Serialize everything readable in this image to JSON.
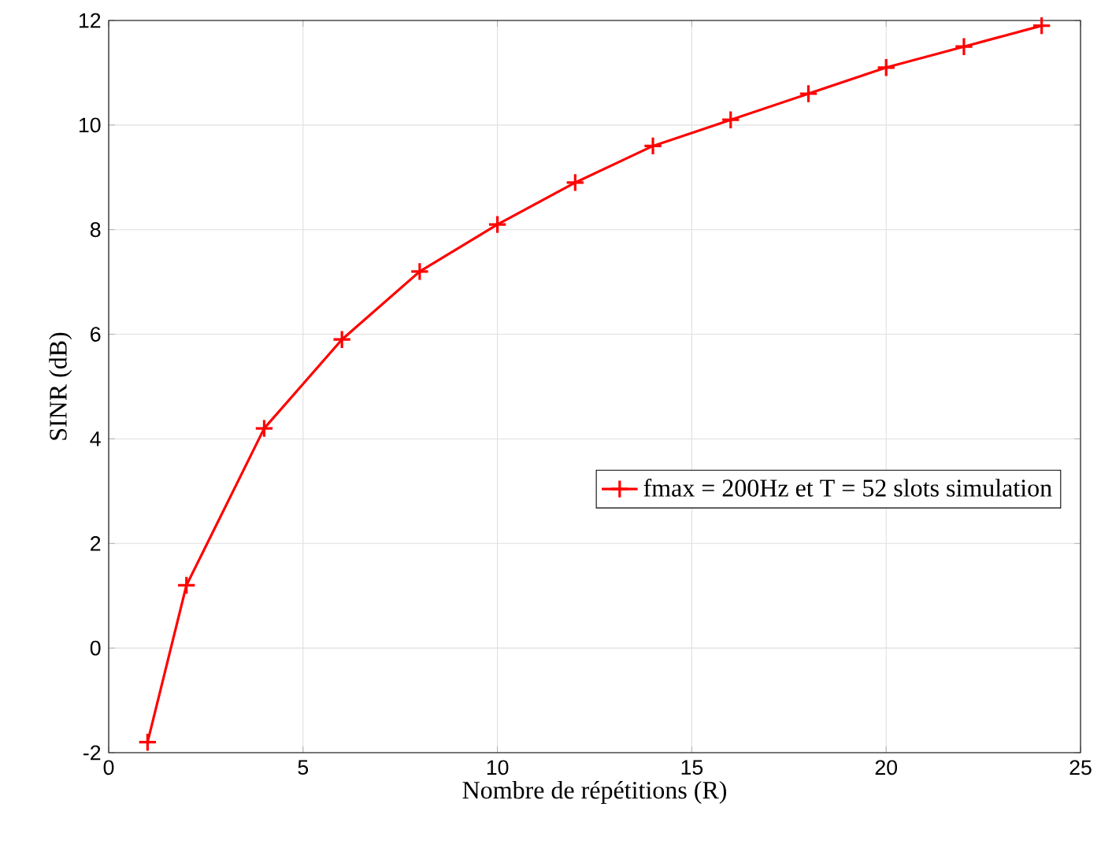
{
  "chart_data": {
    "type": "line",
    "xlabel": "Nombre de répétitions (R)",
    "ylabel": "SINR (dB)",
    "x": [
      1,
      2,
      4,
      6,
      8,
      10,
      12,
      14,
      16,
      18,
      20,
      22,
      24
    ],
    "series": [
      {
        "name": "fmax = 200Hz et T = 52 slots simulation",
        "color": "#ff0000",
        "values": [
          -1.8,
          1.2,
          4.2,
          5.9,
          7.2,
          8.1,
          8.9,
          9.6,
          10.1,
          10.6,
          11.1,
          11.5,
          11.9
        ]
      }
    ],
    "xlim": [
      0,
      25
    ],
    "ylim": [
      -2,
      12
    ],
    "xticks": [
      0,
      5,
      10,
      15,
      20,
      25
    ],
    "yticks": [
      -2,
      0,
      2,
      4,
      6,
      8,
      10,
      12
    ],
    "grid": true,
    "legend": "right",
    "marker": "cross",
    "line_style": "solid"
  }
}
